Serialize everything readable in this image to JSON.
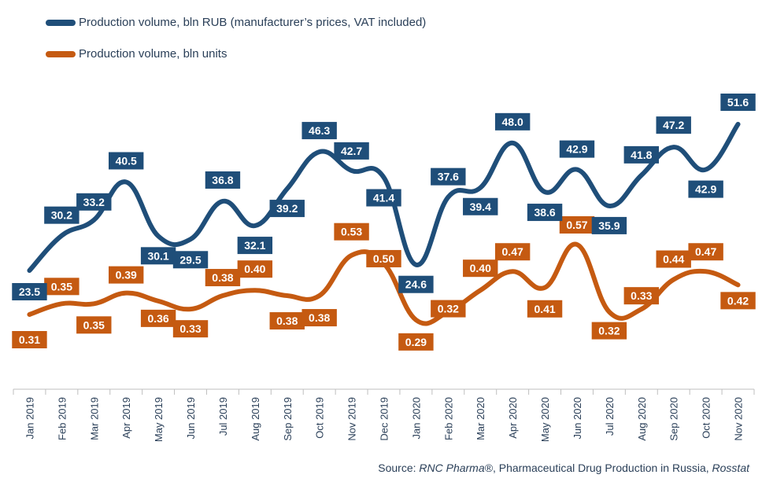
{
  "colors": {
    "rub": "#1f4e79",
    "units": "#c55a11",
    "axis": "#bfbfbf"
  },
  "source": {
    "label": "Source:",
    "part1": "RNC Pharma®",
    "part2": ", Pharmaceutical Drug Production in Russia, ",
    "part3": "Rosstat"
  },
  "chart_data": {
    "type": "line",
    "categories": [
      "Jan 2019",
      "Feb 2019",
      "Mar 2019",
      "Apr 2019",
      "May 2019",
      "Jun 2019",
      "Jul 2019",
      "Aug 2019",
      "Sep 2019",
      "Oct 2019",
      "Nov 2019",
      "Dec 2019",
      "Jan 2020",
      "Feb 2020",
      "Mar 2020",
      "Apr 2020",
      "May 2020",
      "Jun 2020",
      "Jul 2020",
      "Aug 2020",
      "Sep 2020",
      "Oct 2020",
      "Nov 2020"
    ],
    "legend_position": "top-left",
    "grid": false,
    "series": [
      {
        "name": "Production volume, bln RUB (manufacturer’s prices, VAT included)",
        "values": [
          23.5,
          30.2,
          33.2,
          40.5,
          30.1,
          29.5,
          36.8,
          32.1,
          39.2,
          46.3,
          42.7,
          41.4,
          24.6,
          37.6,
          39.4,
          48.0,
          38.6,
          42.9,
          35.9,
          41.8,
          47.2,
          42.9,
          51.6
        ],
        "labels": [
          "23.5",
          "30.2",
          "33.2",
          "40.5",
          "30.1",
          "29.5",
          "36.8",
          "32.1",
          "39.2",
          "46.3",
          "42.7",
          "41.4",
          "24.6",
          "37.6",
          "39.4",
          "48.0",
          "38.6",
          "42.9",
          "35.9",
          "41.8",
          "47.2",
          "42.9",
          "51.6"
        ]
      },
      {
        "name": "Production volume, bln units",
        "values": [
          0.31,
          0.35,
          0.35,
          0.39,
          0.36,
          0.33,
          0.38,
          0.4,
          0.38,
          0.38,
          0.53,
          0.5,
          0.29,
          0.32,
          0.4,
          0.47,
          0.41,
          0.57,
          0.32,
          0.33,
          0.44,
          0.47,
          0.42
        ],
        "labels": [
          "0.31",
          "0.35",
          "0.35",
          "0.39",
          "0.36",
          "0.33",
          "0.38",
          "0.40",
          "0.38",
          "0.38",
          "0.53",
          "0.50",
          "0.29",
          "0.32",
          "0.40",
          "0.47",
          "0.41",
          "0.57",
          "0.32",
          "0.33",
          "0.44",
          "0.47",
          "0.42"
        ]
      }
    ]
  }
}
